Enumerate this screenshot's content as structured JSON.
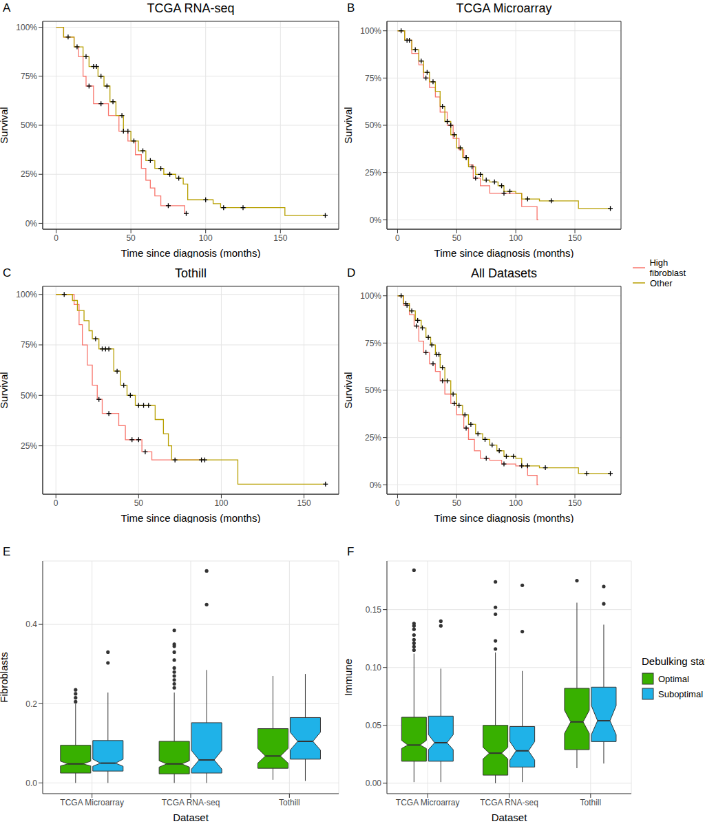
{
  "chart_data": [
    {
      "panel": "A",
      "type": "line",
      "title": "TCGA RNA-seq",
      "x_label": "Time since diagnosis (months)",
      "y_label": "Survival",
      "xlim": [
        -9,
        189
      ],
      "xticks": [
        0,
        50,
        100,
        150
      ],
      "ylim": [
        -3,
        103
      ],
      "yticks": [
        {
          "value": 0,
          "label": "0%"
        },
        {
          "value": 25,
          "label": "25%"
        },
        {
          "value": 50,
          "label": "50%"
        },
        {
          "value": 75,
          "label": "75%"
        },
        {
          "value": 100,
          "label": "100%"
        }
      ],
      "grid": true,
      "series": [
        {
          "name": "High fibroblast",
          "color": "#f8766d",
          "line_style": "step",
          "marker": "plus",
          "x": [
            0,
            5,
            12,
            15,
            18,
            20,
            25,
            35,
            42,
            48,
            53,
            57,
            60,
            63,
            66,
            70,
            86,
            87
          ],
          "values": [
            100,
            95,
            90,
            85,
            75,
            70,
            61,
            55,
            47,
            42,
            35,
            28,
            22,
            18,
            14,
            9,
            5,
            5
          ],
          "censored_x": [
            22,
            30,
            45,
            75,
            87
          ],
          "censored_values": [
            70,
            61,
            47,
            9,
            5
          ]
        },
        {
          "name": "Other",
          "color": "#b79f00",
          "line_style": "step",
          "marker": "plus",
          "x": [
            0,
            5,
            12,
            18,
            22,
            28,
            32,
            36,
            40,
            45,
            50,
            55,
            60,
            66,
            72,
            80,
            85,
            88,
            105,
            110,
            153,
            180
          ],
          "values": [
            100,
            95,
            90,
            85,
            80,
            75,
            70,
            62,
            55,
            47,
            42,
            37,
            32,
            28,
            25,
            23,
            20,
            12,
            10,
            8,
            4,
            4
          ],
          "censored_x": [
            8,
            14,
            20,
            25,
            27,
            30,
            34,
            38,
            44,
            48,
            52,
            58,
            63,
            70,
            76,
            82,
            100,
            112,
            125,
            180
          ],
          "censored_values": [
            95,
            90,
            85,
            80,
            80,
            75,
            70,
            62,
            55,
            47,
            42,
            37,
            32,
            28,
            25,
            23,
            12,
            8,
            8,
            4
          ]
        }
      ]
    },
    {
      "panel": "B",
      "type": "line",
      "title": "TCGA Microarray",
      "x_label": "Time since diagnosis (months)",
      "y_label": "Survival",
      "xlim": [
        -9,
        189
      ],
      "xticks": [
        0,
        50,
        100,
        150
      ],
      "ylim": [
        -5,
        105
      ],
      "yticks": [
        {
          "value": 0,
          "label": "0%"
        },
        {
          "value": 25,
          "label": "25%"
        },
        {
          "value": 50,
          "label": "50%"
        },
        {
          "value": 75,
          "label": "75%"
        },
        {
          "value": 100,
          "label": "100%"
        }
      ],
      "grid": true,
      "series": [
        {
          "name": "High fibroblast",
          "color": "#f8766d",
          "line_style": "step",
          "marker": "plus",
          "x": [
            0,
            6,
            12,
            18,
            22,
            27,
            32,
            36,
            42,
            47,
            52,
            56,
            60,
            64,
            70,
            78,
            105,
            118,
            119
          ],
          "values": [
            100,
            95,
            88,
            82,
            75,
            70,
            65,
            57,
            50,
            43,
            37,
            33,
            29,
            22,
            18,
            14,
            7,
            0,
            0
          ],
          "censored_x": [
            10,
            24,
            45,
            58,
            66,
            90
          ],
          "censored_values": [
            95,
            75,
            50,
            33,
            22,
            14
          ]
        },
        {
          "name": "Other",
          "color": "#b79f00",
          "line_style": "step",
          "marker": "plus",
          "x": [
            0,
            6,
            12,
            18,
            22,
            27,
            32,
            36,
            40,
            45,
            50,
            55,
            60,
            66,
            72,
            78,
            85,
            90,
            100,
            105,
            120,
            153,
            180
          ],
          "values": [
            100,
            95,
            90,
            84,
            78,
            73,
            68,
            60,
            52,
            45,
            38,
            33,
            28,
            24,
            21,
            20,
            18,
            15,
            14,
            11,
            10,
            6,
            6
          ],
          "censored_x": [
            3,
            8,
            15,
            20,
            25,
            30,
            38,
            42,
            48,
            53,
            58,
            63,
            70,
            75,
            82,
            88,
            95,
            110,
            130,
            180
          ],
          "censored_values": [
            100,
            95,
            90,
            84,
            78,
            73,
            60,
            52,
            45,
            38,
            33,
            28,
            24,
            21,
            20,
            18,
            15,
            11,
            10,
            6
          ]
        }
      ]
    },
    {
      "panel": "C",
      "type": "line",
      "title": "Tothill",
      "x_label": "Time since diagnosis (months)",
      "y_label": "Survival",
      "xlim": [
        -8,
        171
      ],
      "xticks": [
        0,
        50,
        100,
        150
      ],
      "ylim": [
        1,
        104
      ],
      "yticks": [
        {
          "value": 25,
          "label": "25%"
        },
        {
          "value": 50,
          "label": "50%"
        },
        {
          "value": 75,
          "label": "75%"
        },
        {
          "value": 100,
          "label": "100%"
        }
      ],
      "grid": true,
      "series": [
        {
          "name": "High fibroblast",
          "color": "#f8766d",
          "line_style": "step",
          "marker": "plus",
          "x": [
            0,
            11,
            14,
            16,
            19,
            22,
            25,
            28,
            38,
            42,
            52,
            58,
            90
          ],
          "values": [
            100,
            95,
            85,
            75,
            65,
            55,
            48,
            41,
            35,
            28,
            22,
            18,
            18
          ],
          "censored_x": [
            26,
            32,
            46,
            50,
            54,
            88
          ],
          "censored_values": [
            48,
            41,
            28,
            28,
            22,
            18
          ]
        },
        {
          "name": "Other",
          "color": "#b79f00",
          "line_style": "step",
          "marker": "plus",
          "x": [
            0,
            10,
            13,
            17,
            20,
            22,
            26,
            35,
            39,
            43,
            48,
            60,
            65,
            68,
            70,
            110,
            163
          ],
          "values": [
            100,
            97,
            92,
            87,
            82,
            78,
            73,
            62,
            55,
            50,
            45,
            38,
            31,
            25,
            18,
            6,
            6
          ],
          "censored_x": [
            5,
            24,
            28,
            30,
            32,
            37,
            41,
            45,
            50,
            53,
            56,
            72,
            90,
            163
          ],
          "censored_values": [
            100,
            78,
            73,
            73,
            73,
            62,
            55,
            50,
            45,
            45,
            45,
            18,
            18,
            6
          ]
        }
      ]
    },
    {
      "panel": "D",
      "type": "line",
      "title": "All Datasets",
      "x_label": "Time since diagnosis (months)",
      "y_label": "Survival",
      "xlim": [
        -9,
        189
      ],
      "xticks": [
        0,
        50,
        100,
        150
      ],
      "ylim": [
        -5,
        105
      ],
      "yticks": [
        {
          "value": 0,
          "label": "0%"
        },
        {
          "value": 25,
          "label": "25%"
        },
        {
          "value": 50,
          "label": "50%"
        },
        {
          "value": 75,
          "label": "75%"
        },
        {
          "value": 100,
          "label": "100%"
        }
      ],
      "grid": true,
      "legend": "right",
      "series": [
        {
          "name": "High fibroblast",
          "color": "#f8766d",
          "line_style": "step",
          "marker": "plus",
          "x": [
            0,
            5,
            10,
            14,
            18,
            22,
            27,
            32,
            36,
            40,
            45,
            50,
            56,
            60,
            65,
            70,
            78,
            88,
            100,
            110,
            118,
            119
          ],
          "values": [
            100,
            95,
            90,
            84,
            76,
            70,
            64,
            60,
            55,
            48,
            43,
            37,
            30,
            24,
            18,
            14,
            13,
            11,
            10,
            5,
            0,
            0
          ],
          "censored_x": [
            8,
            16,
            24,
            30,
            38,
            48,
            58,
            75,
            90,
            105
          ],
          "censored_values": [
            95,
            84,
            70,
            64,
            55,
            43,
            30,
            14,
            11,
            10
          ]
        },
        {
          "name": "Other",
          "color": "#b79f00",
          "line_style": "step",
          "marker": "plus",
          "x": [
            0,
            5,
            10,
            15,
            20,
            24,
            28,
            32,
            36,
            40,
            45,
            50,
            55,
            60,
            66,
            72,
            78,
            84,
            90,
            100,
            105,
            120,
            153,
            180
          ],
          "values": [
            100,
            96,
            92,
            87,
            83,
            78,
            74,
            69,
            62,
            55,
            48,
            42,
            37,
            32,
            27,
            24,
            21,
            18,
            15,
            14,
            10,
            9,
            6,
            6
          ],
          "censored_x": [
            3,
            7,
            12,
            17,
            21,
            26,
            29,
            33,
            35,
            38,
            42,
            47,
            52,
            57,
            62,
            68,
            74,
            80,
            86,
            92,
            98,
            110,
            125,
            160,
            180
          ],
          "censored_values": [
            100,
            96,
            92,
            87,
            83,
            78,
            74,
            69,
            69,
            62,
            55,
            48,
            42,
            37,
            32,
            27,
            24,
            21,
            18,
            15,
            15,
            10,
            9,
            6,
            6
          ]
        }
      ]
    },
    {
      "panel": "E",
      "type": "box",
      "x_label": "Dataset",
      "y_label": "Fibroblasts",
      "categories": [
        "TCGA Microarray",
        "TCGA RNA-seq",
        "Tothill"
      ],
      "ylim": [
        -0.027,
        0.56
      ],
      "yticks": [
        {
          "value": 0,
          "label": "0.0"
        },
        0.2,
        0.4
      ],
      "grid": true,
      "series": [
        {
          "name": "Optimal",
          "color": "#38b000",
          "boxes": [
            {
              "min": 0.0,
              "q1": 0.025,
              "median": 0.048,
              "q3": 0.095,
              "max": 0.2,
              "notch": [
                0.043,
                0.055
              ],
              "outliers": [
                0.205,
                0.215,
                0.225,
                0.235
              ]
            },
            {
              "min": 0.0,
              "q1": 0.023,
              "median": 0.048,
              "q3": 0.105,
              "max": 0.228,
              "notch": [
                0.04,
                0.056
              ],
              "outliers": [
                0.24,
                0.25,
                0.26,
                0.27,
                0.28,
                0.29,
                0.31,
                0.33,
                0.345,
                0.35,
                0.385
              ]
            },
            {
              "min": 0.008,
              "q1": 0.037,
              "median": 0.068,
              "q3": 0.137,
              "max": 0.27,
              "notch": [
                0.05,
                0.087
              ]
            }
          ]
        },
        {
          "name": "Suboptimal",
          "color": "#1fb2e8",
          "boxes": [
            {
              "min": 0.0,
              "q1": 0.03,
              "median": 0.05,
              "q3": 0.107,
              "max": 0.228,
              "notch": [
                0.042,
                0.06
              ],
              "outliers": [
                0.303,
                0.33
              ]
            },
            {
              "min": 0.0,
              "q1": 0.025,
              "median": 0.058,
              "q3": 0.152,
              "max": 0.285,
              "notch": [
                0.035,
                0.082
              ],
              "outliers": [
                0.45,
                0.535
              ]
            },
            {
              "min": 0.005,
              "q1": 0.06,
              "median": 0.105,
              "q3": 0.165,
              "max": 0.275,
              "notch": [
                0.083,
                0.128
              ]
            }
          ]
        }
      ]
    },
    {
      "panel": "F",
      "type": "box",
      "x_label": "Dataset",
      "y_label": "Immune",
      "categories": [
        "TCGA Microarray",
        "TCGA RNA-seq",
        "Tothill"
      ],
      "ylim": [
        -0.009,
        0.192
      ],
      "yticks": [
        {
          "value": 0,
          "label": "0.00"
        },
        0.05,
        {
          "value": 0.1,
          "label": "0.10"
        },
        0.15
      ],
      "grid": true,
      "legend": "right",
      "legend_title": "Debulking status",
      "series": [
        {
          "name": "Optimal",
          "color": "#38b000",
          "boxes": [
            {
              "min": 0.001,
              "q1": 0.019,
              "median": 0.033,
              "q3": 0.057,
              "max": 0.112,
              "notch": [
                0.03,
                0.037
              ],
              "outliers": [
                0.115,
                0.118,
                0.121,
                0.124,
                0.128,
                0.133,
                0.136,
                0.138,
                0.184
              ]
            },
            {
              "min": 0.0,
              "q1": 0.007,
              "median": 0.026,
              "q3": 0.05,
              "max": 0.113,
              "notch": [
                0.021,
                0.031
              ],
              "outliers": [
                0.116,
                0.123,
                0.146,
                0.152,
                0.174
              ]
            },
            {
              "min": 0.013,
              "q1": 0.029,
              "median": 0.053,
              "q3": 0.082,
              "max": 0.156,
              "notch": [
                0.043,
                0.063
              ],
              "outliers": [
                0.175
              ]
            }
          ]
        },
        {
          "name": "Suboptimal",
          "color": "#1fb2e8",
          "boxes": [
            {
              "min": 0.001,
              "q1": 0.019,
              "median": 0.035,
              "q3": 0.058,
              "max": 0.099,
              "notch": [
                0.029,
                0.042
              ],
              "outliers": [
                0.136,
                0.14
              ]
            },
            {
              "min": 0.001,
              "q1": 0.014,
              "median": 0.028,
              "q3": 0.049,
              "max": 0.097,
              "notch": [
                0.02,
                0.036
              ],
              "outliers": [
                0.131,
                0.171
              ]
            },
            {
              "min": 0.017,
              "q1": 0.036,
              "median": 0.054,
              "q3": 0.083,
              "max": 0.137,
              "notch": [
                0.042,
                0.067
              ],
              "outliers": [
                0.155,
                0.17
              ]
            }
          ]
        }
      ]
    }
  ]
}
